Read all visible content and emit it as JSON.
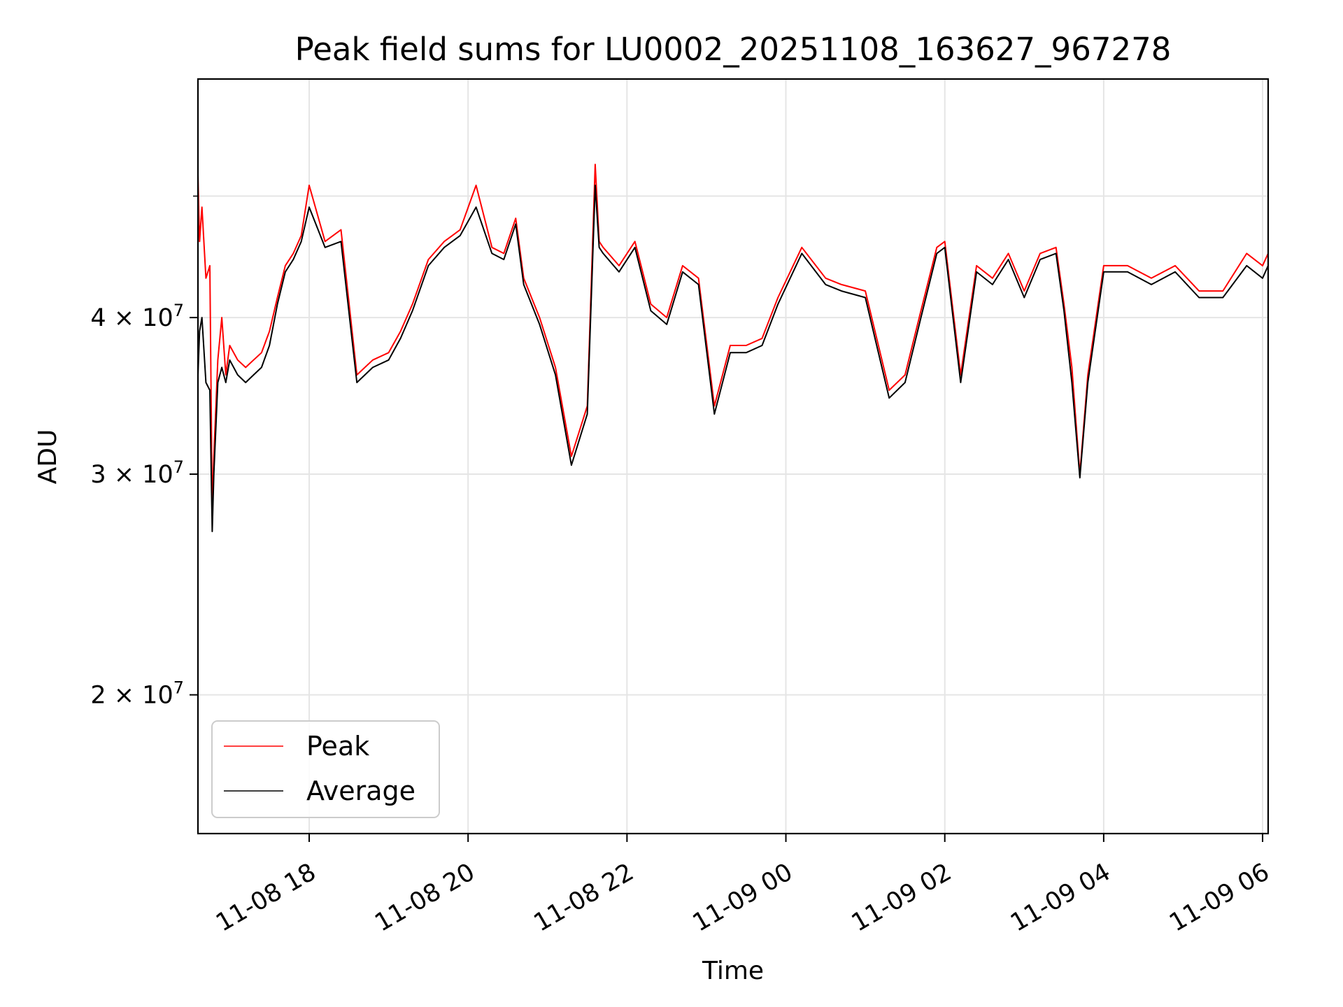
{
  "chart_data": {
    "type": "line",
    "title": "Peak field sums for LU0002_20251108_163627_967278",
    "xlabel": "Time",
    "ylabel": "ADU",
    "yscale": "log",
    "ylim": [
      15500000,
      62000000
    ],
    "xlim_hours": [
      16.6,
      30.07
    ],
    "x_ticks": [
      {
        "hour": 18,
        "label": "11-08 18"
      },
      {
        "hour": 20,
        "label": "11-08 20"
      },
      {
        "hour": 22,
        "label": "11-08 22"
      },
      {
        "hour": 24,
        "label": "11-09 00"
      },
      {
        "hour": 26,
        "label": "11-09 02"
      },
      {
        "hour": 28,
        "label": "11-09 04"
      },
      {
        "hour": 30,
        "label": "11-09 06"
      }
    ],
    "y_ticks": [
      {
        "value": 20000000,
        "mantissa": "2",
        "exponent": "7"
      },
      {
        "value": 30000000,
        "mantissa": "3",
        "exponent": "7"
      },
      {
        "value": 40000000,
        "mantissa": "4",
        "exponent": "7"
      }
    ],
    "y_minor_ticks": [
      50000000
    ],
    "grid": true,
    "legend": {
      "position": "lower-left"
    },
    "series": [
      {
        "name": "Peak",
        "color": "#ff0000",
        "x": [
          16.6,
          16.62,
          16.65,
          16.7,
          16.75,
          16.78,
          16.8,
          16.85,
          16.9,
          16.95,
          17.0,
          17.1,
          17.2,
          17.3,
          17.4,
          17.5,
          17.6,
          17.7,
          17.8,
          17.9,
          18.0,
          18.2,
          18.4,
          18.6,
          18.8,
          19.0,
          19.1,
          19.15,
          19.3,
          19.5,
          19.7,
          19.8,
          19.9,
          20.1,
          20.3,
          20.45,
          20.6,
          20.7,
          20.9,
          21.1,
          21.3,
          21.5,
          21.6,
          21.65,
          21.7,
          21.9,
          22.1,
          22.3,
          22.5,
          22.7,
          22.9,
          23.1,
          23.3,
          23.5,
          23.7,
          23.9,
          24.2,
          24.5,
          24.7,
          25.0,
          25.3,
          25.5,
          25.7,
          25.9,
          26.0,
          26.2,
          26.4,
          26.6,
          26.8,
          27.0,
          27.2,
          27.4,
          27.5,
          27.6,
          27.7,
          27.8,
          28.0,
          28.3,
          28.6,
          28.9,
          29.2,
          29.5,
          29.8,
          30.0,
          30.07
        ],
        "values": [
          52000000,
          46000000,
          49000000,
          43000000,
          44000000,
          28000000,
          31000000,
          37000000,
          40000000,
          36000000,
          38000000,
          37000000,
          36500000,
          37000000,
          37500000,
          39000000,
          41500000,
          44000000,
          45000000,
          46500000,
          51000000,
          46000000,
          47000000,
          36000000,
          37000000,
          37500000,
          38500000,
          39000000,
          41000000,
          44500000,
          46000000,
          46500000,
          47000000,
          51000000,
          45500000,
          45000000,
          48000000,
          43000000,
          40000000,
          36500000,
          31000000,
          34000000,
          53000000,
          46000000,
          45500000,
          44000000,
          46000000,
          41000000,
          40000000,
          44000000,
          43000000,
          34000000,
          38000000,
          38000000,
          38500000,
          41500000,
          45500000,
          43000000,
          42500000,
          42000000,
          35000000,
          36000000,
          40500000,
          45500000,
          46000000,
          36000000,
          44000000,
          43000000,
          45000000,
          42000000,
          45000000,
          45500000,
          41000000,
          36500000,
          30000000,
          36000000,
          44000000,
          44000000,
          43000000,
          44000000,
          42000000,
          42000000,
          45000000,
          44000000,
          45000000
        ]
      },
      {
        "name": "Average",
        "color": "#000000",
        "x": [
          16.6,
          16.62,
          16.65,
          16.7,
          16.75,
          16.78,
          16.8,
          16.85,
          16.9,
          16.95,
          17.0,
          17.1,
          17.2,
          17.3,
          17.4,
          17.5,
          17.6,
          17.7,
          17.8,
          17.9,
          18.0,
          18.2,
          18.4,
          18.6,
          18.8,
          19.0,
          19.1,
          19.15,
          19.3,
          19.5,
          19.7,
          19.8,
          19.9,
          20.1,
          20.3,
          20.45,
          20.6,
          20.7,
          20.9,
          21.1,
          21.3,
          21.5,
          21.6,
          21.65,
          21.7,
          21.9,
          22.1,
          22.3,
          22.5,
          22.7,
          22.9,
          23.1,
          23.3,
          23.5,
          23.7,
          23.9,
          24.2,
          24.5,
          24.7,
          25.0,
          25.3,
          25.5,
          25.7,
          25.9,
          26.0,
          26.2,
          26.4,
          26.6,
          26.8,
          27.0,
          27.2,
          27.4,
          27.5,
          27.6,
          27.7,
          27.8,
          28.0,
          28.3,
          28.6,
          28.9,
          29.2,
          29.5,
          29.8,
          30.0,
          30.07
        ],
        "values": [
          36000000,
          39000000,
          40000000,
          35500000,
          35000000,
          27000000,
          30000000,
          35500000,
          36500000,
          35500000,
          37000000,
          36000000,
          35500000,
          36000000,
          36500000,
          38000000,
          41000000,
          43500000,
          44500000,
          46000000,
          49000000,
          45500000,
          46000000,
          35500000,
          36500000,
          37000000,
          38000000,
          38500000,
          40500000,
          44000000,
          45500000,
          46000000,
          46500000,
          49000000,
          45000000,
          44500000,
          47500000,
          42500000,
          39500000,
          36000000,
          30500000,
          33500000,
          51000000,
          45500000,
          45000000,
          43500000,
          45500000,
          40500000,
          39500000,
          43500000,
          42500000,
          33500000,
          37500000,
          37500000,
          38000000,
          41000000,
          45000000,
          42500000,
          42000000,
          41500000,
          34500000,
          35500000,
          40000000,
          45000000,
          45500000,
          35500000,
          43500000,
          42500000,
          44500000,
          41500000,
          44500000,
          45000000,
          40500000,
          35500000,
          29800000,
          35500000,
          43500000,
          43500000,
          42500000,
          43500000,
          41500000,
          41500000,
          44000000,
          43000000,
          44000000
        ]
      }
    ]
  }
}
